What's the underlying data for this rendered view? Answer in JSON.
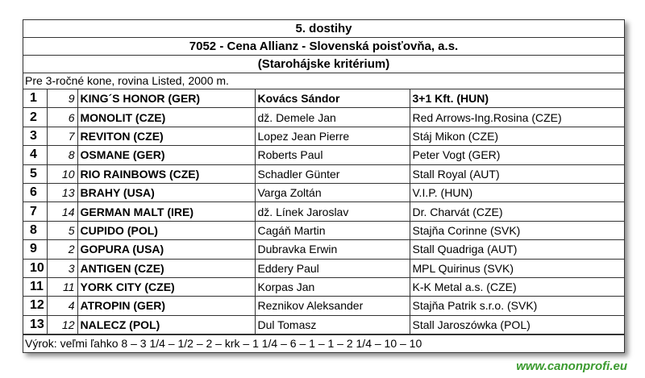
{
  "header": {
    "title": "5. dostihy",
    "race": "7052 - Cena Allianz - Slovenská poisťovňa, a.s.",
    "subtitle": "(Starohájske kritérium)",
    "conditions": "Pre 3-ročné kone, rovina Listed, 2000 m."
  },
  "table": {
    "rows": [
      [
        1,
        9,
        "KING´S HONOR (GER)",
        "Kovács Sándor",
        "3+1 Kft. (HUN)"
      ],
      [
        2,
        6,
        "MONOLIT (CZE)",
        "dž. Demele Jan",
        "Red Arrows-Ing.Rosina (CZE)"
      ],
      [
        3,
        7,
        "REVITON (CZE)",
        "Lopez Jean Pierre",
        "Stáj Mikon (CZE)"
      ],
      [
        4,
        8,
        "OSMANE (GER)",
        "Roberts Paul",
        "Peter Vogt (GER)"
      ],
      [
        5,
        10,
        "RIO RAINBOWS (CZE)",
        "Schadler Günter",
        "Stall Royal (AUT)"
      ],
      [
        6,
        13,
        "BRAHY (USA)",
        "Varga Zoltán",
        "V.I.P. (HUN)"
      ],
      [
        7,
        14,
        "GERMAN MALT (IRE)",
        "dž. Línek Jaroslav",
        "Dr. Charvát (CZE)"
      ],
      [
        8,
        5,
        "CUPIDO (POL)",
        "Cagáň Martin",
        "Stajňa Corinne (SVK)"
      ],
      [
        9,
        2,
        "GOPURA (USA)",
        "Dubravka Erwin",
        "Stall Quadriga (AUT)"
      ],
      [
        10,
        3,
        "ANTIGEN (CZE)",
        "Eddery Paul",
        "MPL Quirinus (SVK)"
      ],
      [
        11,
        11,
        "YORK CITY (CZE)",
        "Korpas Jan",
        "K-K Metal a.s. (CZE)"
      ],
      [
        12,
        4,
        "ATROPIN (GER)",
        "Reznikov Aleksander",
        "Stajňa Patrik s.r.o. (SVK)"
      ],
      [
        13,
        12,
        "NALECZ (POL)",
        "Dul Tomasz",
        "Stall Jaroszówka (POL)"
      ]
    ]
  },
  "footer": "Výrok: veľmi ľahko 8 – 3 1/4 – 1/2 – 2 – krk – 1 1/4 – 6 – 1 – 1 – 2 1/4 – 10 – 10",
  "watermark": "www.canonprofi.eu"
}
